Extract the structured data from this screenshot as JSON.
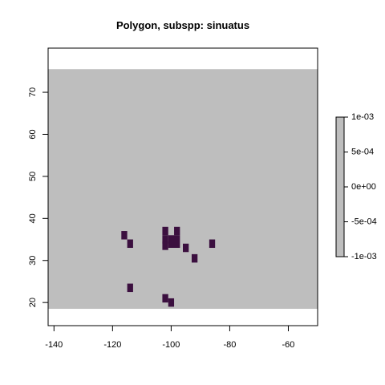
{
  "chart_data": {
    "type": "heatmap",
    "title": "Polygon, subspp: sinuatus",
    "xlabel": "",
    "ylabel": "",
    "xlim": [
      -142,
      -50
    ],
    "ylim": [
      14.5,
      80.5
    ],
    "x_ticks": [
      -140,
      -120,
      -100,
      -80,
      -60
    ],
    "y_ticks": [
      20,
      30,
      40,
      50,
      60,
      70
    ],
    "grid": false,
    "raster_extent": {
      "x": [
        -142,
        -50
      ],
      "y": [
        18.5,
        75.5
      ]
    },
    "background_color": "#bebebe",
    "cell_color": "#3b0f3f",
    "cell_size": 2,
    "cells": [
      {
        "x": -116,
        "y": 36
      },
      {
        "x": -114,
        "y": 34
      },
      {
        "x": -102,
        "y": 37
      },
      {
        "x": -98,
        "y": 37
      },
      {
        "x": -102,
        "y": 35
      },
      {
        "x": -102,
        "y": 33.5
      },
      {
        "x": -99,
        "y": 34.5,
        "w": 4,
        "h": 3
      },
      {
        "x": -95,
        "y": 33
      },
      {
        "x": -92,
        "y": 30.5
      },
      {
        "x": -86,
        "y": 34
      },
      {
        "x": -114,
        "y": 23.5
      },
      {
        "x": -102,
        "y": 21
      },
      {
        "x": -100,
        "y": 20
      }
    ],
    "legend": {
      "placement": "right",
      "color": "#bebebe",
      "range": [
        -0.001,
        0.001
      ],
      "tick_labels": [
        "1e-03",
        "5e-04",
        "0e+00",
        "-5e-04",
        "-1e-03"
      ]
    }
  }
}
